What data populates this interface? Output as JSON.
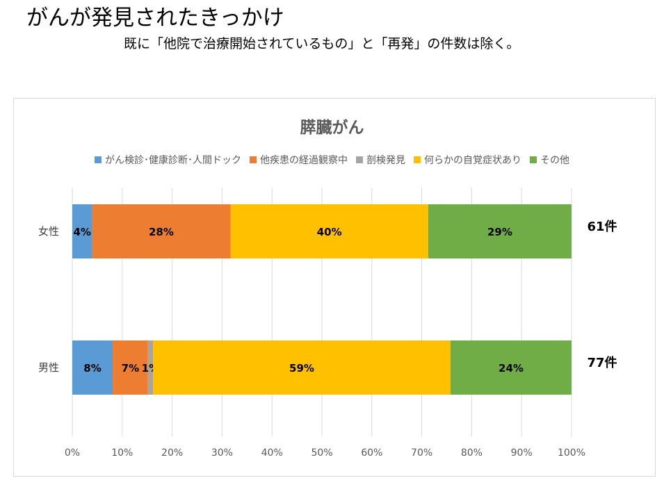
{
  "page": {
    "title": "がんが発見されたきっかけ",
    "note": "既に「他院で治療開始されているもの」と「再発」の件数は除く。"
  },
  "chart_data": {
    "type": "bar",
    "orientation": "horizontal",
    "stacked": "percent",
    "title": "膵臓がん",
    "categories": [
      "女性",
      "男性"
    ],
    "series": [
      {
        "name": "がん検診･健康診断･人間ドック",
        "color": "#5b9bd5",
        "values": [
          4,
          8
        ],
        "labels": [
          "4%",
          "8%"
        ]
      },
      {
        "name": "他疾患の経過観察中",
        "color": "#ed7d31",
        "values": [
          28,
          7
        ],
        "labels": [
          "28%",
          "7%"
        ]
      },
      {
        "name": "剖検発見",
        "color": "#a5a5a5",
        "values": [
          0,
          1
        ],
        "labels": [
          "",
          "1%"
        ]
      },
      {
        "name": "何らかの自覚症状あり",
        "color": "#ffc000",
        "values": [
          40,
          59
        ],
        "labels": [
          "40%",
          "59%"
        ]
      },
      {
        "name": "その他",
        "color": "#70ad47",
        "values": [
          29,
          24
        ],
        "labels": [
          "29%",
          "24%"
        ]
      }
    ],
    "totals": [
      "61件",
      "77件"
    ],
    "x_ticks": [
      "0%",
      "10%",
      "20%",
      "30%",
      "40%",
      "50%",
      "60%",
      "70%",
      "80%",
      "90%",
      "100%"
    ],
    "xlim": [
      0,
      100
    ],
    "grid": true,
    "legend_position": "top"
  }
}
